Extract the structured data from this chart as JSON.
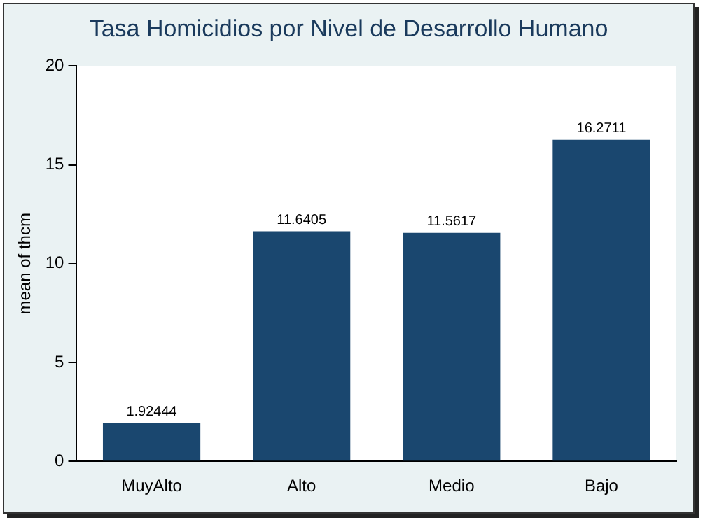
{
  "chart_data": {
    "type": "bar",
    "title": "Tasa Homicidios por Nivel de Desarrollo Humano",
    "ylabel": "mean of thcm",
    "categories": [
      "MuyAlto",
      "Alto",
      "Medio",
      "Bajo"
    ],
    "values": [
      1.92444,
      11.6405,
      11.5617,
      16.2711
    ],
    "color": "#1a476f",
    "ylim": [
      0,
      20
    ],
    "yticks": [
      0,
      5,
      10,
      15,
      20
    ],
    "grid": false,
    "data_labels": true
  }
}
